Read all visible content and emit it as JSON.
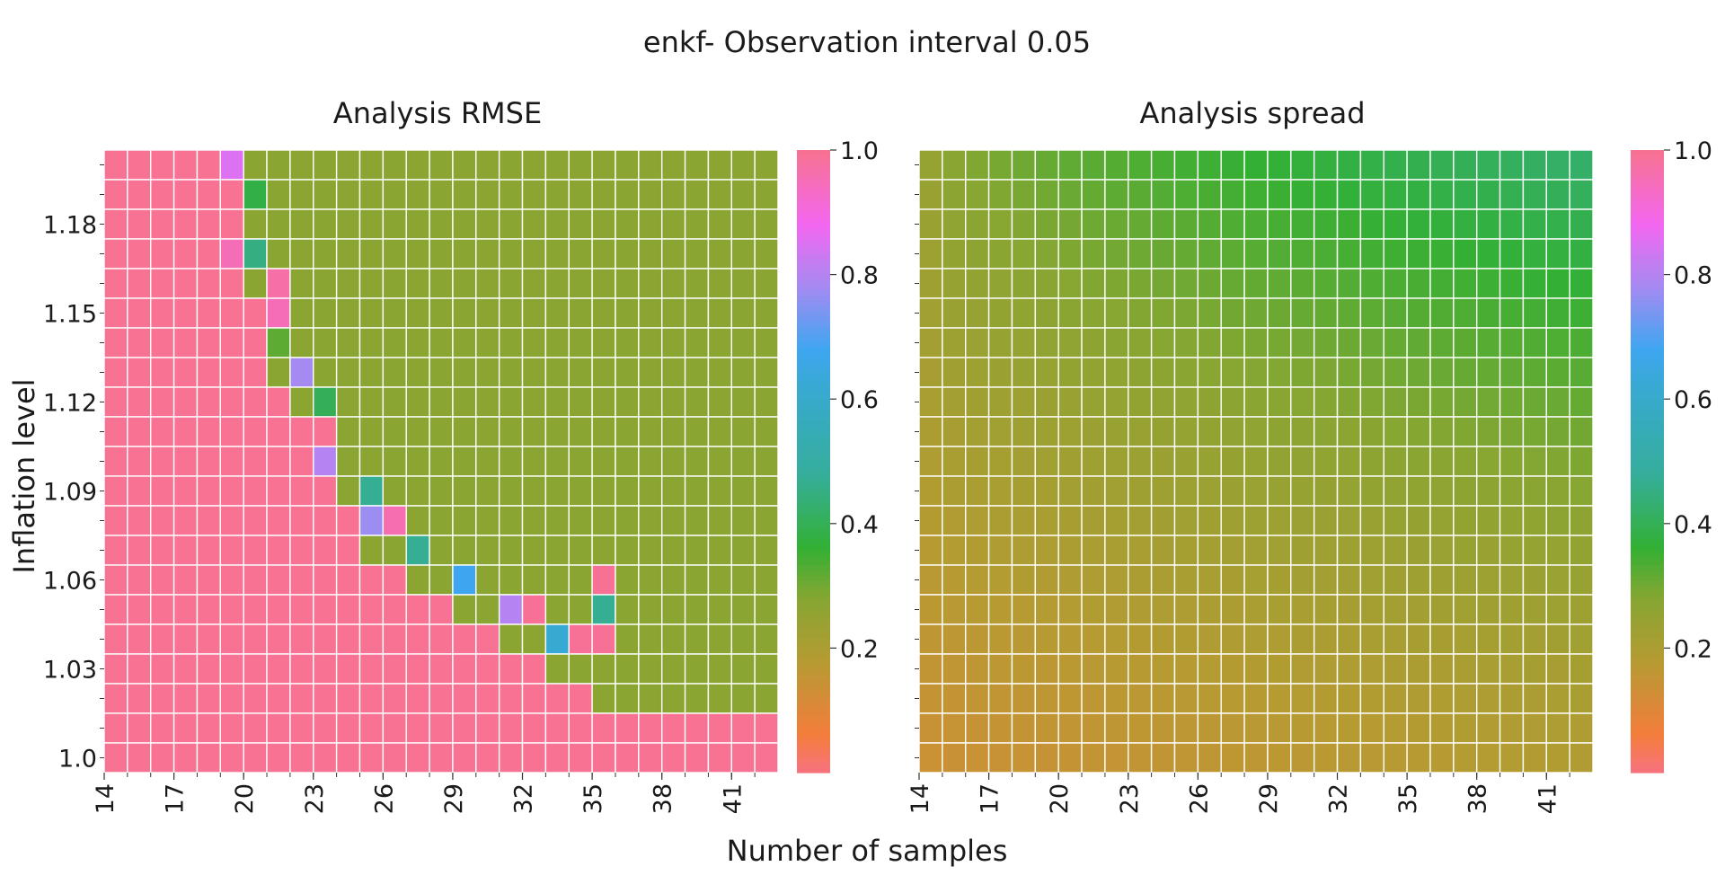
{
  "title": "enkf- Observation interval 0.05",
  "xlabel": "Number of samples",
  "ylabel": "Inflation level",
  "chart_data": [
    {
      "type": "heatmap",
      "title": "Analysis RMSE",
      "x": [
        14,
        15,
        16,
        17,
        18,
        19,
        20,
        21,
        22,
        23,
        24,
        25,
        26,
        27,
        28,
        29,
        30,
        31,
        32,
        33,
        34,
        35,
        36,
        37,
        38,
        39,
        40,
        41,
        42
      ],
      "x_tick_labels": [
        "14",
        "17",
        "20",
        "23",
        "26",
        "29",
        "32",
        "35",
        "38",
        "41"
      ],
      "y_top_to_bottom": [
        1.2,
        1.19,
        1.18,
        1.17,
        1.16,
        1.15,
        1.14,
        1.13,
        1.12,
        1.11,
        1.1,
        1.09,
        1.08,
        1.07,
        1.06,
        1.05,
        1.04,
        1.03,
        1.02,
        1.01,
        1.0
      ],
      "y_tick_labels": [
        "1.18",
        "1.15",
        "1.12",
        "1.09",
        "1.06",
        "1.03",
        "1.0"
      ],
      "colorbar": {
        "min": 0.0,
        "max": 1.0,
        "ticks": [
          "0.2",
          "0.4",
          "0.6",
          "0.8",
          "1.0"
        ]
      },
      "values_description": "pink region ~1.0 (diverged) at low samples/low inflation, ~0.27 elsewhere",
      "boundary_first_converged_column": [
        20,
        20,
        20,
        20,
        20,
        21,
        21,
        21,
        22,
        24,
        24,
        24,
        25,
        25,
        27,
        29,
        31,
        33,
        35,
        99,
        99
      ],
      "transition_cells": [
        {
          "x": 19,
          "y": 1.2,
          "value": 0.85
        },
        {
          "x": 20,
          "y": 1.19,
          "value": 0.38
        },
        {
          "x": 19,
          "y": 1.17,
          "value": 0.95
        },
        {
          "x": 20,
          "y": 1.17,
          "value": 0.45
        },
        {
          "x": 21,
          "y": 1.16,
          "value": 0.97
        },
        {
          "x": 21,
          "y": 1.15,
          "value": 0.95
        },
        {
          "x": 21,
          "y": 1.14,
          "value": 0.32
        },
        {
          "x": 22,
          "y": 1.13,
          "value": 0.78
        },
        {
          "x": 23,
          "y": 1.12,
          "value": 0.4
        },
        {
          "x": 23,
          "y": 1.1,
          "value": 0.8
        },
        {
          "x": 25,
          "y": 1.09,
          "value": 0.47
        },
        {
          "x": 25,
          "y": 1.08,
          "value": 0.77
        },
        {
          "x": 26,
          "y": 1.08,
          "value": 0.96
        },
        {
          "x": 27,
          "y": 1.07,
          "value": 0.47
        },
        {
          "x": 29,
          "y": 1.06,
          "value": 0.68
        },
        {
          "x": 35,
          "y": 1.06,
          "value": 0.99
        },
        {
          "x": 31,
          "y": 1.05,
          "value": 0.8
        },
        {
          "x": 32,
          "y": 1.05,
          "value": 0.99
        },
        {
          "x": 35,
          "y": 1.05,
          "value": 0.47
        },
        {
          "x": 33,
          "y": 1.04,
          "value": 0.62
        },
        {
          "x": 34,
          "y": 1.04,
          "value": 0.99
        },
        {
          "x": 35,
          "y": 1.04,
          "value": 0.99
        }
      ]
    },
    {
      "type": "heatmap",
      "title": "Analysis spread",
      "x": [
        14,
        15,
        16,
        17,
        18,
        19,
        20,
        21,
        22,
        23,
        24,
        25,
        26,
        27,
        28,
        29,
        30,
        31,
        32,
        33,
        34,
        35,
        36,
        37,
        38,
        39,
        40,
        41,
        42
      ],
      "x_tick_labels": [
        "14",
        "17",
        "20",
        "23",
        "26",
        "29",
        "32",
        "35",
        "38",
        "41"
      ],
      "y_top_to_bottom": [
        1.2,
        1.19,
        1.18,
        1.17,
        1.16,
        1.15,
        1.14,
        1.13,
        1.12,
        1.11,
        1.1,
        1.09,
        1.08,
        1.07,
        1.06,
        1.05,
        1.04,
        1.03,
        1.02,
        1.01,
        1.0
      ],
      "colorbar": {
        "min": 0.0,
        "max": 1.0,
        "ticks": [
          "0.2",
          "0.4",
          "0.6",
          "0.8",
          "1.0"
        ]
      },
      "values_description": "smooth gradient, ~0.14 at bottom to ~0.36-0.42 at top right",
      "value_range": [
        0.14,
        0.42
      ]
    }
  ],
  "colormap": [
    {
      "stop": 0.0,
      "color": "#f7727f"
    },
    {
      "stop": 0.06,
      "color": "#f47d3c"
    },
    {
      "stop": 0.18,
      "color": "#b59b32"
    },
    {
      "stop": 0.28,
      "color": "#86a632"
    },
    {
      "stop": 0.36,
      "color": "#33b034"
    },
    {
      "stop": 0.48,
      "color": "#35ae9c"
    },
    {
      "stop": 0.62,
      "color": "#38a9d3"
    },
    {
      "stop": 0.68,
      "color": "#3ea6f0"
    },
    {
      "stop": 0.78,
      "color": "#a58af2"
    },
    {
      "stop": 0.88,
      "color": "#f367f0"
    },
    {
      "stop": 1.0,
      "color": "#f7728f"
    }
  ]
}
